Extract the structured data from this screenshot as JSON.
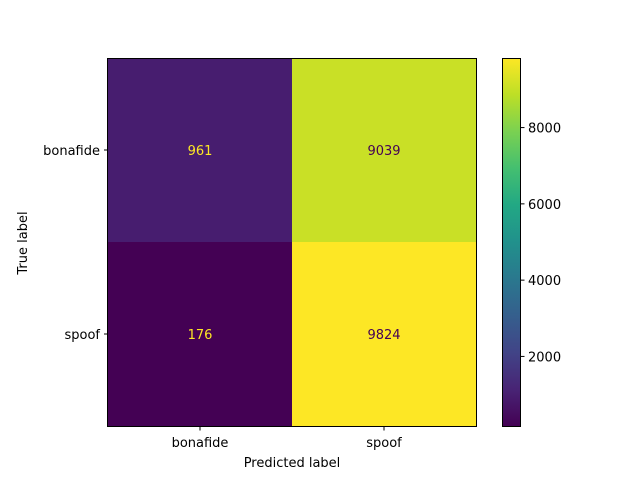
{
  "chart_data": {
    "type": "heatmap",
    "title": "",
    "xlabel": "Predicted label",
    "ylabel": "True label",
    "x_categories": [
      "bonafide",
      "spoof"
    ],
    "y_categories": [
      "bonafide",
      "spoof"
    ],
    "values": [
      [
        961,
        9039
      ],
      [
        176,
        9824
      ]
    ],
    "colormap": "viridis",
    "color_range": [
      176,
      9824
    ],
    "colorbar_ticks": [
      2000,
      4000,
      6000,
      8000
    ],
    "text_color_dark_cells": "#fde725",
    "text_color_light_cells": "#440154",
    "grid": false,
    "legend": "colorbar-right"
  }
}
